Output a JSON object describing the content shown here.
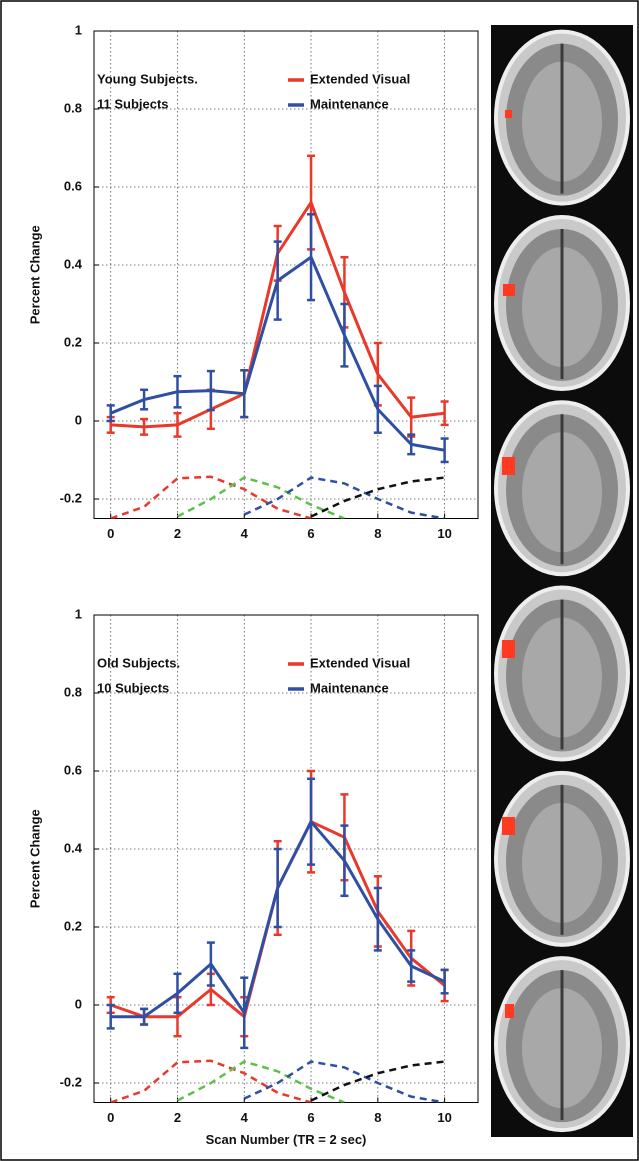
{
  "chart_data": [
    {
      "type": "line",
      "annotations": [
        "Young Subjects.",
        "11 Subjects"
      ],
      "ylabel": "Percent Change",
      "x": [
        0,
        1,
        2,
        3,
        4,
        5,
        6,
        7,
        8,
        9,
        10
      ],
      "xlim": [
        -0.5,
        11
      ],
      "xticks": [
        0,
        2,
        4,
        6,
        8,
        10
      ],
      "ylim": [
        -0.25,
        1
      ],
      "yticks": [
        -0.2,
        0,
        0.2,
        0.4,
        0.6,
        0.8,
        1
      ],
      "grid": true,
      "series": [
        {
          "name": "Extended Visual",
          "color": "#e8392a",
          "values": [
            -0.01,
            -0.015,
            -0.01,
            0.03,
            0.07,
            0.43,
            0.56,
            0.33,
            0.12,
            0.01,
            0.02
          ],
          "errors": [
            0.02,
            0.02,
            0.03,
            0.05,
            0.06,
            0.07,
            0.12,
            0.09,
            0.08,
            0.05,
            0.03
          ]
        },
        {
          "name": "Maintenance",
          "color": "#2e4fa3",
          "values": [
            0.02,
            0.055,
            0.075,
            0.078,
            0.07,
            0.36,
            0.42,
            0.22,
            0.03,
            -0.06,
            -0.075
          ],
          "errors": [
            0.02,
            0.025,
            0.04,
            0.05,
            0.06,
            0.1,
            0.11,
            0.08,
            0.06,
            0.025,
            0.03
          ]
        },
        {
          "color": "#e8392a",
          "dashed": true,
          "values": [
            -0.25,
            -0.22,
            -0.147,
            -0.143,
            -0.175,
            -0.225,
            -0.25,
            null,
            null,
            null,
            null
          ]
        },
        {
          "color": "#5bc24a",
          "dashed": true,
          "values": [
            null,
            null,
            -0.245,
            -0.2,
            -0.145,
            -0.17,
            -0.215,
            -0.25,
            null,
            null,
            null
          ]
        },
        {
          "color": "#2e4fa3",
          "dashed": true,
          "values": [
            null,
            null,
            null,
            null,
            -0.24,
            -0.2,
            -0.145,
            -0.16,
            -0.2,
            -0.235,
            -0.25
          ]
        },
        {
          "color": "#111111",
          "dashed": true,
          "values": [
            null,
            null,
            null,
            null,
            null,
            null,
            -0.245,
            -0.205,
            -0.175,
            -0.155,
            -0.145
          ]
        }
      ]
    },
    {
      "type": "line",
      "annotations": [
        "Old Subjects.",
        "10 Subjects"
      ],
      "ylabel": "Percent Change",
      "xlabel": "Scan Number (TR = 2 sec)",
      "x": [
        0,
        1,
        2,
        3,
        4,
        5,
        6,
        7,
        8,
        9,
        10
      ],
      "xlim": [
        -0.5,
        11
      ],
      "xticks": [
        0,
        2,
        4,
        6,
        8,
        10
      ],
      "ylim": [
        -0.25,
        1
      ],
      "yticks": [
        -0.2,
        0,
        0.2,
        0.4,
        0.6,
        0.8,
        1
      ],
      "grid": true,
      "series": [
        {
          "name": "Extended Visual",
          "color": "#e8392a",
          "values": [
            0,
            -0.03,
            -0.03,
            0.04,
            -0.03,
            0.3,
            0.47,
            0.43,
            0.24,
            0.12,
            0.05
          ],
          "errors": [
            0.02,
            0.02,
            0.05,
            0.04,
            0.05,
            0.12,
            0.13,
            0.11,
            0.09,
            0.07,
            0.04
          ]
        },
        {
          "name": "Maintenance",
          "color": "#2e4fa3",
          "values": [
            -0.03,
            -0.03,
            0.03,
            0.105,
            -0.02,
            0.3,
            0.47,
            0.37,
            0.22,
            0.1,
            0.06
          ],
          "errors": [
            0.03,
            0.02,
            0.05,
            0.055,
            0.09,
            0.1,
            0.11,
            0.09,
            0.08,
            0.04,
            0.03
          ]
        },
        {
          "color": "#e8392a",
          "dashed": true,
          "values": [
            -0.25,
            -0.22,
            -0.147,
            -0.143,
            -0.175,
            -0.225,
            -0.25,
            null,
            null,
            null,
            null
          ]
        },
        {
          "color": "#5bc24a",
          "dashed": true,
          "values": [
            null,
            null,
            -0.245,
            -0.2,
            -0.145,
            -0.17,
            -0.215,
            -0.25,
            null,
            null,
            null
          ]
        },
        {
          "color": "#2e4fa3",
          "dashed": true,
          "values": [
            null,
            null,
            null,
            null,
            -0.24,
            -0.2,
            -0.145,
            -0.16,
            -0.2,
            -0.235,
            -0.25
          ]
        },
        {
          "color": "#111111",
          "dashed": true,
          "values": [
            null,
            null,
            null,
            null,
            null,
            null,
            -0.245,
            -0.205,
            -0.175,
            -0.155,
            -0.145
          ]
        }
      ]
    }
  ]
}
